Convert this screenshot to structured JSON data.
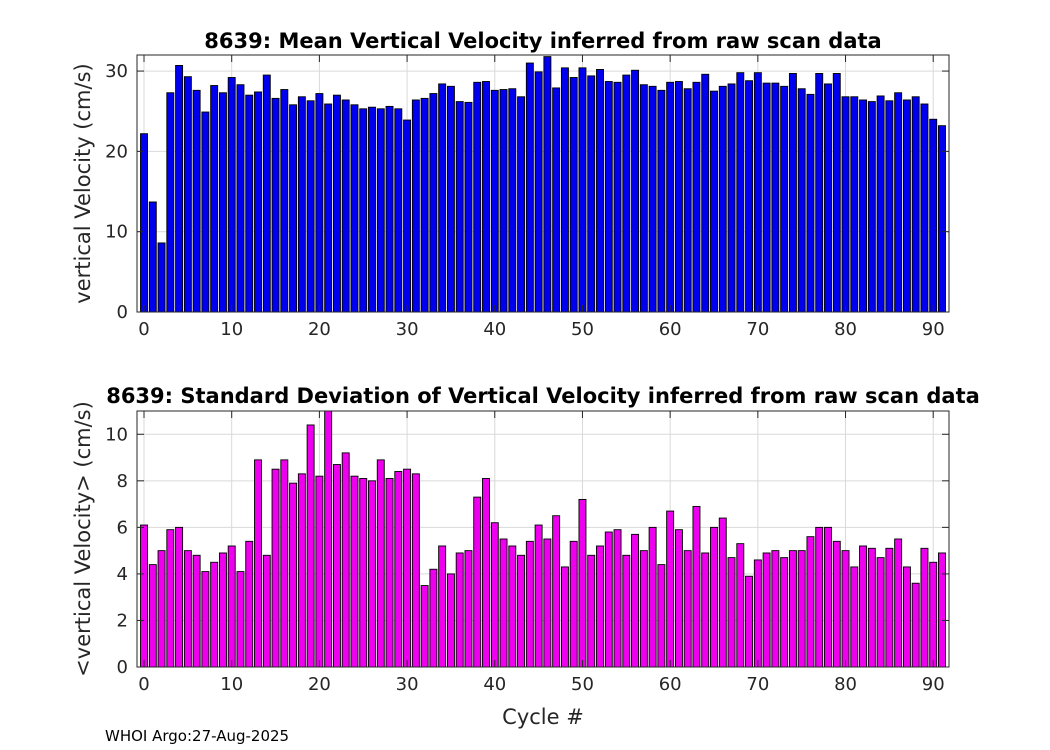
{
  "chart_data": [
    {
      "type": "bar",
      "title": "8639: Mean Vertical Velocity inferred from raw scan data",
      "xlabel": "",
      "ylabel": "vertical Velocity (cm/s)",
      "color": "#0000ee",
      "grid": true,
      "xlim": [
        -0.8,
        91.8
      ],
      "ylim": [
        0,
        32
      ],
      "xticks": [
        0,
        10,
        20,
        30,
        40,
        50,
        60,
        70,
        80,
        90
      ],
      "yticks": [
        0,
        10,
        20,
        30
      ],
      "x": [
        0,
        1,
        2,
        3,
        4,
        5,
        6,
        7,
        8,
        9,
        10,
        11,
        12,
        13,
        14,
        15,
        16,
        17,
        18,
        19,
        20,
        21,
        22,
        23,
        24,
        25,
        26,
        27,
        28,
        29,
        30,
        31,
        32,
        33,
        34,
        35,
        36,
        37,
        38,
        39,
        40,
        41,
        42,
        43,
        44,
        45,
        46,
        47,
        48,
        49,
        50,
        51,
        52,
        53,
        54,
        55,
        56,
        57,
        58,
        59,
        60,
        61,
        62,
        63,
        64,
        65,
        66,
        67,
        68,
        69,
        70,
        71,
        72,
        73,
        74,
        75,
        76,
        77,
        78,
        79,
        80,
        81,
        82,
        83,
        84,
        85,
        86,
        87,
        88,
        89,
        90,
        91
      ],
      "values": [
        22.2,
        13.7,
        8.6,
        27.3,
        30.7,
        29.3,
        27.6,
        24.9,
        28.2,
        27.3,
        29.2,
        28.3,
        27.0,
        27.4,
        29.5,
        26.6,
        27.7,
        25.8,
        26.8,
        26.3,
        27.2,
        25.9,
        27.0,
        26.4,
        25.8,
        25.3,
        25.5,
        25.3,
        25.6,
        25.3,
        23.9,
        26.4,
        26.6,
        27.2,
        28.4,
        28.1,
        26.2,
        26.1,
        28.6,
        28.7,
        27.6,
        27.7,
        27.8,
        26.8,
        31.0,
        29.9,
        31.8,
        27.9,
        30.4,
        29.2,
        30.4,
        29.4,
        30.2,
        28.7,
        28.6,
        29.5,
        30.1,
        28.3,
        28.1,
        27.6,
        28.6,
        28.7,
        27.8,
        28.6,
        29.6,
        27.5,
        28.1,
        28.4,
        29.8,
        28.8,
        29.8,
        28.5,
        28.5,
        28.1,
        29.7,
        27.8,
        27.1,
        29.7,
        28.4,
        29.7,
        26.8,
        26.8,
        26.4,
        26.2,
        26.9,
        26.3,
        27.3,
        26.4,
        26.8,
        25.9,
        24.0,
        23.2
      ]
    },
    {
      "type": "bar",
      "title": "8639: Standard Deviation of Vertical Velocity inferred from raw scan data",
      "xlabel": "Cycle #",
      "ylabel": "<vertical Velocity> (cm/s)",
      "color": "#ee00ee",
      "grid": true,
      "xlim": [
        -0.8,
        91.8
      ],
      "ylim": [
        0,
        11
      ],
      "xticks": [
        0,
        10,
        20,
        30,
        40,
        50,
        60,
        70,
        80,
        90
      ],
      "yticks": [
        0,
        2,
        4,
        6,
        8,
        10
      ],
      "x": [
        0,
        1,
        2,
        3,
        4,
        5,
        6,
        7,
        8,
        9,
        10,
        11,
        12,
        13,
        14,
        15,
        16,
        17,
        18,
        19,
        20,
        21,
        22,
        23,
        24,
        25,
        26,
        27,
        28,
        29,
        30,
        31,
        32,
        33,
        34,
        35,
        36,
        37,
        38,
        39,
        40,
        41,
        42,
        43,
        44,
        45,
        46,
        47,
        48,
        49,
        50,
        51,
        52,
        53,
        54,
        55,
        56,
        57,
        58,
        59,
        60,
        61,
        62,
        63,
        64,
        65,
        66,
        67,
        68,
        69,
        70,
        71,
        72,
        73,
        74,
        75,
        76,
        77,
        78,
        79,
        80,
        81,
        82,
        83,
        84,
        85,
        86,
        87,
        88,
        89,
        90,
        91
      ],
      "values": [
        6.1,
        4.4,
        5.0,
        5.9,
        6.0,
        5.0,
        4.8,
        4.1,
        4.5,
        4.9,
        5.2,
        4.1,
        5.4,
        8.9,
        4.8,
        8.5,
        8.9,
        7.9,
        8.3,
        10.4,
        8.2,
        11.0,
        8.7,
        9.2,
        8.2,
        8.1,
        8.0,
        8.9,
        8.1,
        8.4,
        8.5,
        8.3,
        3.5,
        4.2,
        5.2,
        4.0,
        4.9,
        5.0,
        7.3,
        8.1,
        6.2,
        5.5,
        5.2,
        4.8,
        5.4,
        6.1,
        5.5,
        6.5,
        4.3,
        5.4,
        7.2,
        4.8,
        5.2,
        5.8,
        5.9,
        4.8,
        5.7,
        5.0,
        6.0,
        4.4,
        6.7,
        5.9,
        5.0,
        6.9,
        4.9,
        6.0,
        6.4,
        4.7,
        5.3,
        3.9,
        4.6,
        4.9,
        5.0,
        4.7,
        5.0,
        5.0,
        5.6,
        6.0,
        6.0,
        5.4,
        5.0,
        4.3,
        5.2,
        5.1,
        4.7,
        5.1,
        5.5,
        4.3,
        3.6,
        5.1,
        4.5,
        4.9
      ]
    }
  ],
  "footer": {
    "text": "WHOI Argo:27-Aug-2025"
  }
}
